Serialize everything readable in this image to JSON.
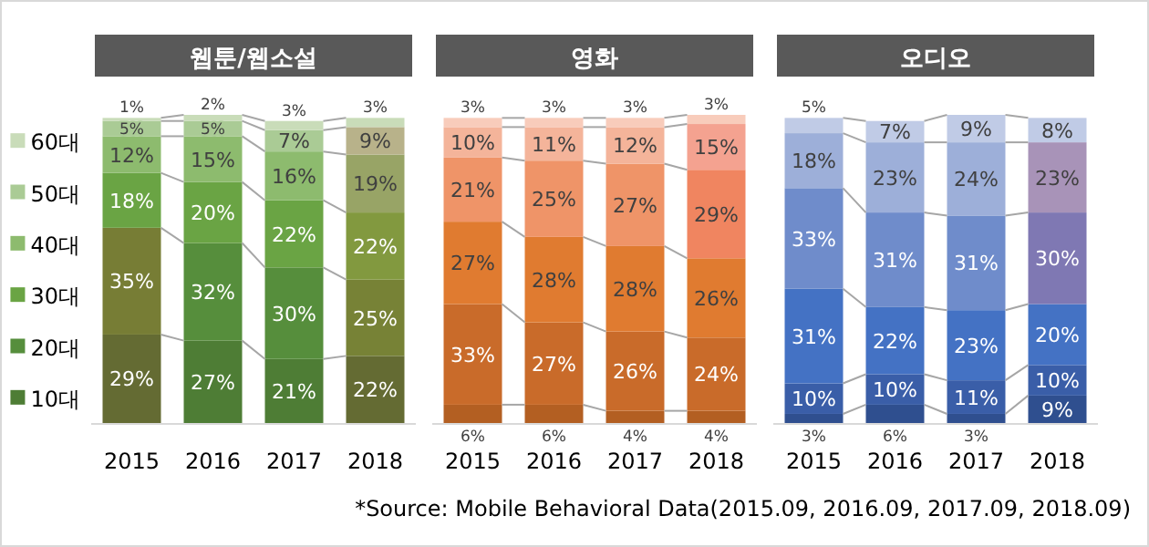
{
  "chart_data": [
    {
      "type": "bar",
      "stacked": true,
      "title": "웹툰/웹소설",
      "categories": [
        "2015",
        "2016",
        "2017",
        "2018"
      ],
      "legend": "left",
      "series": [
        {
          "name": "10대",
          "color": "#4e7d35",
          "values": [
            29,
            27,
            21,
            22
          ],
          "value_labels": [
            "29%",
            "27%",
            "21%",
            "22%"
          ],
          "colors": [
            "#646b33",
            null,
            null,
            "#646b33"
          ]
        },
        {
          "name": "20대",
          "color": "#568e3c",
          "values": [
            35,
            32,
            30,
            25
          ],
          "value_labels": [
            "35%",
            "32%",
            "30%",
            "25%"
          ],
          "colors": [
            "#777d35",
            null,
            null,
            "#778236"
          ]
        },
        {
          "name": "30대",
          "color": "#6aa444",
          "values": [
            18,
            20,
            22,
            22
          ],
          "value_labels": [
            "18%",
            "20%",
            "22%",
            "22%"
          ],
          "colors": [
            null,
            null,
            null,
            "#82993f"
          ]
        },
        {
          "name": "40대",
          "color": "#8dbb6e",
          "values": [
            12,
            15,
            16,
            19
          ],
          "value_labels": [
            "12%",
            "15%",
            "16%",
            "19%"
          ],
          "colors": [
            null,
            null,
            null,
            "#98a466"
          ]
        },
        {
          "name": "50대",
          "color": "#aacb95",
          "values": [
            5,
            5,
            7,
            9
          ],
          "value_labels": [
            "5%",
            "5%",
            "7%",
            "9%"
          ],
          "colors": [
            null,
            null,
            null,
            "#b8b28a"
          ]
        },
        {
          "name": "60대",
          "color": "#c9dcb9",
          "values": [
            1,
            2,
            3,
            3
          ],
          "value_labels": [
            "1%",
            "2%",
            "3%",
            "3%"
          ]
        }
      ]
    },
    {
      "type": "bar",
      "stacked": true,
      "title": "영화",
      "categories": [
        "2015",
        "2016",
        "2017",
        "2018"
      ],
      "series": [
        {
          "color": "#b35f22",
          "values": [
            6,
            6,
            4,
            4
          ],
          "value_labels": [
            "6%",
            "6%",
            "4%",
            "4%"
          ]
        },
        {
          "color": "#c96b2a",
          "values": [
            33,
            27,
            26,
            24
          ],
          "value_labels": [
            "33%",
            "27%",
            "26%",
            "24%"
          ]
        },
        {
          "color": "#e07b30",
          "values": [
            27,
            28,
            28,
            26
          ],
          "value_labels": [
            "27%",
            "28%",
            "28%",
            "26%"
          ]
        },
        {
          "color": "#ef9468",
          "values": [
            21,
            25,
            27,
            29
          ],
          "value_labels": [
            "21%",
            "25%",
            "27%",
            "29%"
          ],
          "colors": [
            null,
            null,
            null,
            "#f08560"
          ]
        },
        {
          "color": "#f4b49a",
          "values": [
            10,
            11,
            12,
            15
          ],
          "value_labels": [
            "10%",
            "11%",
            "12%",
            "15%"
          ],
          "colors": [
            null,
            null,
            null,
            "#f4a290"
          ]
        },
        {
          "color": "#f8ccbb",
          "values": [
            3,
            3,
            3,
            3
          ],
          "value_labels": [
            "3%",
            "3%",
            "3%",
            "3%"
          ]
        }
      ]
    },
    {
      "type": "bar",
      "stacked": true,
      "title": "오디오",
      "categories": [
        "2015",
        "2016",
        "2017",
        "2018"
      ],
      "annotations": [
        "*Source: Mobile Behavioral Data(2015.09, 2016.09, 2017.09, 2018.09)"
      ],
      "series": [
        {
          "color": "#2f4f8f",
          "values": [
            3,
            6,
            3,
            9
          ],
          "value_labels": [
            "3%",
            "6%",
            "3%",
            "9%"
          ]
        },
        {
          "color": "#3a5ea8",
          "values": [
            10,
            10,
            11,
            10
          ],
          "value_labels": [
            "10%",
            "10%",
            "11%",
            "10%"
          ]
        },
        {
          "color": "#4472c4",
          "values": [
            31,
            22,
            23,
            20
          ],
          "value_labels": [
            "31%",
            "22%",
            "23%",
            "20%"
          ]
        },
        {
          "color": "#6f8ccb",
          "values": [
            33,
            31,
            31,
            30
          ],
          "value_labels": [
            "33%",
            "31%",
            "31%",
            "30%"
          ],
          "colors": [
            null,
            null,
            null,
            "#7f78b3"
          ]
        },
        {
          "color": "#9dafd9",
          "values": [
            18,
            23,
            24,
            23
          ],
          "value_labels": [
            "18%",
            "23%",
            "24%",
            "23%"
          ],
          "colors": [
            null,
            null,
            null,
            "#a893b8"
          ]
        },
        {
          "color": "#c0cbe6",
          "values": [
            5,
            7,
            9,
            8
          ],
          "value_labels": [
            "5%",
            "7%",
            "9%",
            "8%"
          ]
        }
      ]
    }
  ]
}
